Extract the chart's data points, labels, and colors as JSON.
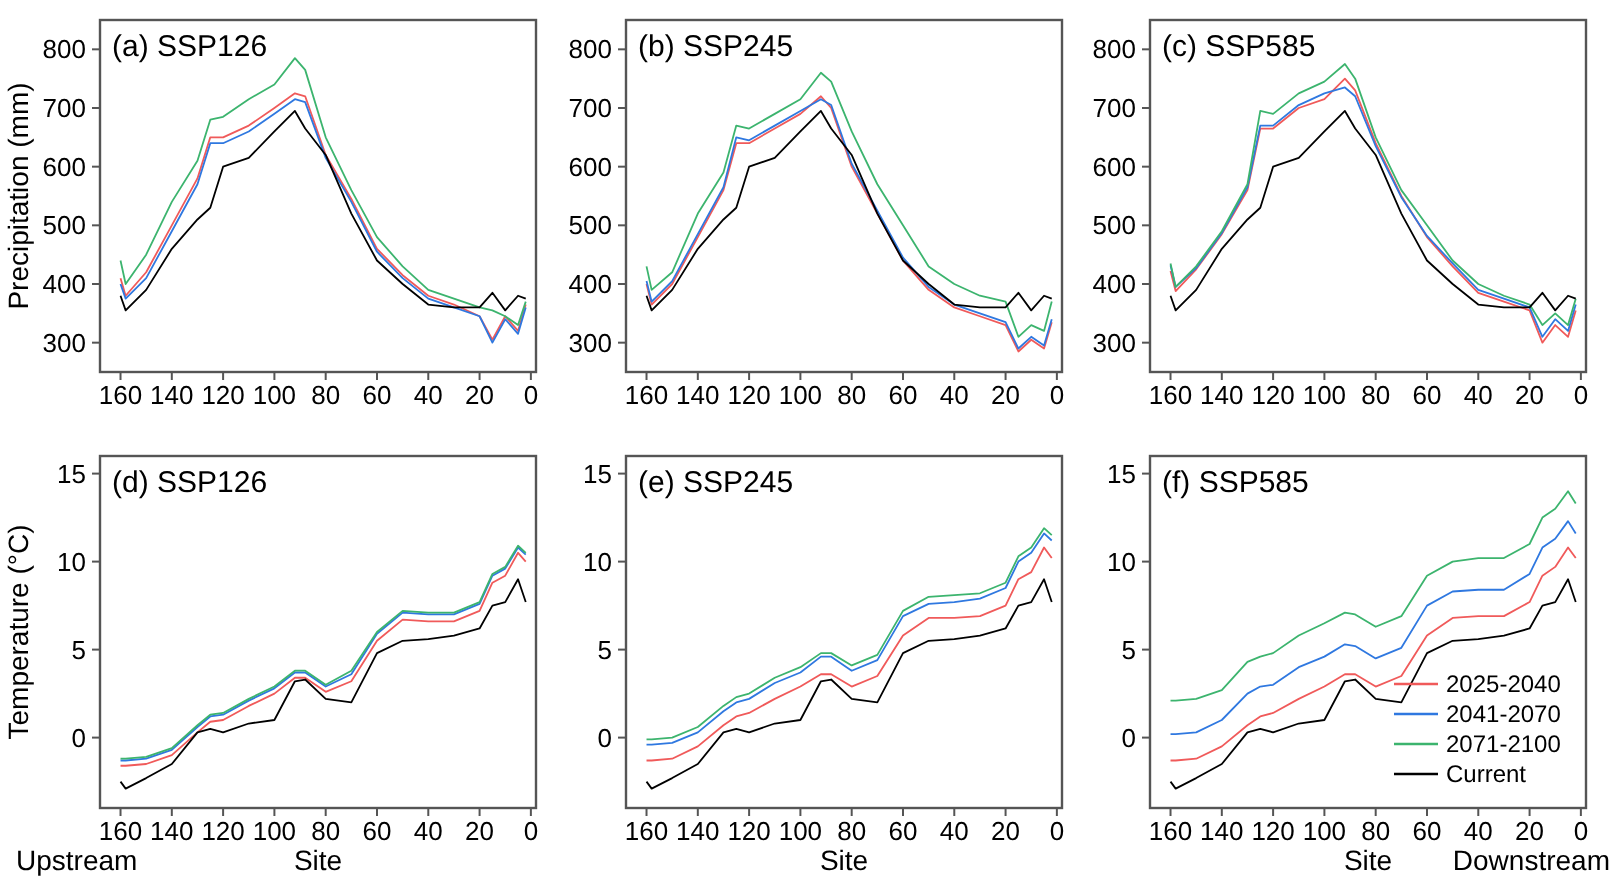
{
  "chart_data": [
    {
      "type": "line",
      "title": "(a) SSP126",
      "ylabel": "Precipitation (mm)",
      "x": [
        160,
        158,
        150,
        140,
        130,
        125,
        120,
        110,
        100,
        92,
        88,
        80,
        70,
        60,
        50,
        40,
        30,
        20,
        15,
        10,
        5,
        2
      ],
      "xlim": [
        168,
        -2
      ],
      "xticks": [
        160,
        140,
        120,
        100,
        80,
        60,
        40,
        20,
        0
      ],
      "ylim": [
        250,
        850
      ],
      "yticks": [
        300,
        400,
        500,
        600,
        700,
        800
      ],
      "series": [
        {
          "color": "#f05a5a",
          "values": [
            410,
            380,
            420,
            500,
            580,
            650,
            650,
            670,
            700,
            725,
            720,
            620,
            545,
            460,
            415,
            380,
            365,
            345,
            305,
            345,
            320,
            365
          ]
        },
        {
          "color": "#2f78e0",
          "values": [
            400,
            375,
            410,
            490,
            570,
            640,
            640,
            660,
            690,
            715,
            710,
            615,
            540,
            455,
            410,
            375,
            360,
            345,
            300,
            340,
            315,
            360
          ]
        },
        {
          "color": "#3cb46e",
          "values": [
            440,
            400,
            450,
            540,
            610,
            680,
            685,
            715,
            740,
            785,
            765,
            650,
            560,
            480,
            430,
            390,
            375,
            360,
            355,
            345,
            330,
            370
          ]
        },
        {
          "color": "#000000",
          "values": [
            380,
            355,
            390,
            460,
            510,
            530,
            600,
            615,
            660,
            695,
            665,
            620,
            520,
            440,
            400,
            365,
            360,
            360,
            385,
            355,
            380,
            375
          ]
        }
      ]
    },
    {
      "type": "line",
      "title": "(b) SSP245",
      "x": [
        160,
        158,
        150,
        140,
        130,
        125,
        120,
        110,
        100,
        92,
        88,
        80,
        70,
        60,
        50,
        40,
        30,
        20,
        15,
        10,
        5,
        2
      ],
      "xlim": [
        168,
        -2
      ],
      "xticks": [
        160,
        140,
        120,
        100,
        80,
        60,
        40,
        20,
        0
      ],
      "ylim": [
        250,
        850
      ],
      "yticks": [
        300,
        400,
        500,
        600,
        700,
        800
      ],
      "series": [
        {
          "color": "#f05a5a",
          "values": [
            400,
            365,
            400,
            480,
            560,
            640,
            640,
            665,
            690,
            720,
            700,
            600,
            520,
            440,
            390,
            360,
            345,
            330,
            285,
            305,
            290,
            335
          ]
        },
        {
          "color": "#2f78e0",
          "values": [
            405,
            370,
            405,
            485,
            565,
            650,
            645,
            670,
            695,
            715,
            705,
            605,
            525,
            445,
            395,
            365,
            350,
            335,
            290,
            310,
            295,
            340
          ]
        },
        {
          "color": "#3cb46e",
          "values": [
            430,
            390,
            420,
            520,
            590,
            670,
            665,
            690,
            715,
            760,
            745,
            660,
            570,
            500,
            430,
            400,
            380,
            370,
            310,
            330,
            320,
            370
          ]
        },
        {
          "color": "#000000",
          "values": [
            380,
            355,
            390,
            460,
            510,
            530,
            600,
            615,
            660,
            695,
            665,
            620,
            520,
            440,
            400,
            365,
            360,
            360,
            385,
            355,
            380,
            375
          ]
        }
      ]
    },
    {
      "type": "line",
      "title": "(c) SSP585",
      "x": [
        160,
        158,
        150,
        140,
        130,
        125,
        120,
        110,
        100,
        92,
        88,
        80,
        70,
        60,
        50,
        40,
        30,
        20,
        15,
        10,
        5,
        2
      ],
      "xlim": [
        168,
        -2
      ],
      "xticks": [
        160,
        140,
        120,
        100,
        80,
        60,
        40,
        20,
        0
      ],
      "ylim": [
        250,
        850
      ],
      "yticks": [
        300,
        400,
        500,
        600,
        700,
        800
      ],
      "series": [
        {
          "color": "#f05a5a",
          "values": [
            422,
            388,
            425,
            485,
            560,
            665,
            665,
            700,
            715,
            750,
            730,
            640,
            550,
            480,
            430,
            385,
            370,
            355,
            300,
            330,
            310,
            355
          ]
        },
        {
          "color": "#2f78e0",
          "values": [
            432,
            395,
            427,
            487,
            565,
            670,
            670,
            705,
            725,
            735,
            720,
            635,
            548,
            482,
            435,
            390,
            375,
            360,
            310,
            340,
            320,
            365
          ]
        },
        {
          "color": "#3cb46e",
          "values": [
            435,
            395,
            430,
            490,
            570,
            695,
            690,
            725,
            745,
            775,
            750,
            650,
            560,
            500,
            440,
            400,
            380,
            365,
            330,
            350,
            330,
            375
          ]
        },
        {
          "color": "#000000",
          "values": [
            380,
            355,
            390,
            460,
            510,
            530,
            600,
            615,
            660,
            695,
            665,
            620,
            520,
            440,
            400,
            365,
            360,
            360,
            385,
            355,
            380,
            375
          ]
        }
      ]
    },
    {
      "type": "line",
      "title": "(d) SSP126",
      "ylabel": "Temperature (°C)",
      "xlabel": "Site",
      "annotations": [
        "Upstream"
      ],
      "x": [
        160,
        158,
        150,
        140,
        130,
        125,
        120,
        110,
        100,
        92,
        88,
        80,
        70,
        60,
        50,
        40,
        30,
        20,
        15,
        10,
        5,
        2
      ],
      "xlim": [
        168,
        -2
      ],
      "xticks": [
        160,
        140,
        120,
        100,
        80,
        60,
        40,
        20,
        0
      ],
      "ylim": [
        -4,
        16
      ],
      "yticks": [
        0,
        5,
        10,
        15
      ],
      "series": [
        {
          "color": "#f05a5a",
          "values": [
            -1.6,
            -1.6,
            -1.5,
            -1.0,
            0.3,
            0.9,
            1.0,
            1.8,
            2.5,
            3.4,
            3.4,
            2.6,
            3.2,
            5.5,
            6.7,
            6.6,
            6.6,
            7.2,
            8.8,
            9.2,
            10.5,
            10.0
          ]
        },
        {
          "color": "#2f78e0",
          "values": [
            -1.3,
            -1.3,
            -1.2,
            -0.7,
            0.6,
            1.2,
            1.3,
            2.1,
            2.8,
            3.7,
            3.7,
            2.9,
            3.6,
            5.9,
            7.1,
            7.0,
            7.0,
            7.6,
            9.2,
            9.6,
            10.8,
            10.4
          ]
        },
        {
          "color": "#3cb46e",
          "values": [
            -1.2,
            -1.2,
            -1.1,
            -0.6,
            0.7,
            1.3,
            1.4,
            2.2,
            2.9,
            3.8,
            3.8,
            3.0,
            3.8,
            6.0,
            7.2,
            7.1,
            7.1,
            7.7,
            9.3,
            9.7,
            10.9,
            10.5
          ]
        },
        {
          "color": "#000000",
          "values": [
            -2.5,
            -2.9,
            -2.3,
            -1.5,
            0.3,
            0.5,
            0.3,
            0.8,
            1.0,
            3.2,
            3.3,
            2.2,
            2.0,
            4.8,
            5.5,
            5.6,
            5.8,
            6.2,
            7.5,
            7.7,
            9.0,
            7.7
          ]
        }
      ]
    },
    {
      "type": "line",
      "title": "(e) SSP245",
      "xlabel": "Site",
      "x": [
        160,
        158,
        150,
        140,
        130,
        125,
        120,
        110,
        100,
        92,
        88,
        80,
        70,
        60,
        50,
        40,
        30,
        20,
        15,
        10,
        5,
        2
      ],
      "xlim": [
        168,
        -2
      ],
      "xticks": [
        160,
        140,
        120,
        100,
        80,
        60,
        40,
        20,
        0
      ],
      "ylim": [
        -4,
        16
      ],
      "yticks": [
        0,
        5,
        10,
        15
      ],
      "series": [
        {
          "color": "#f05a5a",
          "values": [
            -1.3,
            -1.3,
            -1.2,
            -0.5,
            0.7,
            1.2,
            1.4,
            2.2,
            2.9,
            3.6,
            3.6,
            2.9,
            3.5,
            5.8,
            6.8,
            6.8,
            6.9,
            7.5,
            9.0,
            9.4,
            10.8,
            10.2
          ]
        },
        {
          "color": "#2f78e0",
          "values": [
            -0.4,
            -0.4,
            -0.3,
            0.3,
            1.5,
            2.0,
            2.2,
            3.1,
            3.7,
            4.6,
            4.6,
            3.8,
            4.4,
            6.9,
            7.6,
            7.7,
            7.9,
            8.5,
            10.0,
            10.5,
            11.6,
            11.2
          ]
        },
        {
          "color": "#3cb46e",
          "values": [
            -0.1,
            -0.1,
            0.0,
            0.6,
            1.8,
            2.3,
            2.5,
            3.4,
            4.0,
            4.8,
            4.8,
            4.1,
            4.7,
            7.2,
            8.0,
            8.1,
            8.2,
            8.8,
            10.3,
            10.8,
            11.9,
            11.5
          ]
        },
        {
          "color": "#000000",
          "values": [
            -2.5,
            -2.9,
            -2.3,
            -1.5,
            0.3,
            0.5,
            0.3,
            0.8,
            1.0,
            3.2,
            3.3,
            2.2,
            2.0,
            4.8,
            5.5,
            5.6,
            5.8,
            6.2,
            7.5,
            7.7,
            9.0,
            7.7
          ]
        }
      ]
    },
    {
      "type": "line",
      "title": "(f) SSP585",
      "xlabel": "Site",
      "annotations": [
        "Downstream"
      ],
      "legend": "bottom right",
      "x": [
        160,
        158,
        150,
        140,
        130,
        125,
        120,
        110,
        100,
        92,
        88,
        80,
        70,
        60,
        50,
        40,
        30,
        20,
        15,
        10,
        5,
        2
      ],
      "xlim": [
        168,
        -2
      ],
      "xticks": [
        160,
        140,
        120,
        100,
        80,
        60,
        40,
        20,
        0
      ],
      "ylim": [
        -4,
        16
      ],
      "yticks": [
        0,
        5,
        10,
        15
      ],
      "series": [
        {
          "name": "2025-2040",
          "color": "#f05a5a",
          "values": [
            -1.3,
            -1.3,
            -1.2,
            -0.5,
            0.7,
            1.2,
            1.4,
            2.2,
            2.9,
            3.6,
            3.6,
            2.9,
            3.5,
            5.8,
            6.8,
            6.9,
            6.9,
            7.7,
            9.2,
            9.7,
            10.8,
            10.2
          ]
        },
        {
          "name": "2041-2070",
          "color": "#2f78e0",
          "values": [
            0.2,
            0.2,
            0.3,
            1.0,
            2.5,
            2.9,
            3.0,
            4.0,
            4.6,
            5.3,
            5.2,
            4.5,
            5.1,
            7.5,
            8.3,
            8.4,
            8.4,
            9.3,
            10.8,
            11.3,
            12.3,
            11.6
          ]
        },
        {
          "name": "2071-2100",
          "color": "#3cb46e",
          "values": [
            2.1,
            2.1,
            2.2,
            2.7,
            4.3,
            4.6,
            4.8,
            5.8,
            6.5,
            7.1,
            7.0,
            6.3,
            6.9,
            9.2,
            10.0,
            10.2,
            10.2,
            11.0,
            12.5,
            13.0,
            14.0,
            13.3
          ]
        },
        {
          "name": "Current",
          "color": "#000000",
          "values": [
            -2.5,
            -2.9,
            -2.3,
            -1.5,
            0.3,
            0.5,
            0.3,
            0.8,
            1.0,
            3.2,
            3.3,
            2.2,
            2.0,
            4.8,
            5.5,
            5.6,
            5.8,
            6.2,
            7.5,
            7.7,
            9.0,
            7.7
          ]
        }
      ]
    }
  ]
}
